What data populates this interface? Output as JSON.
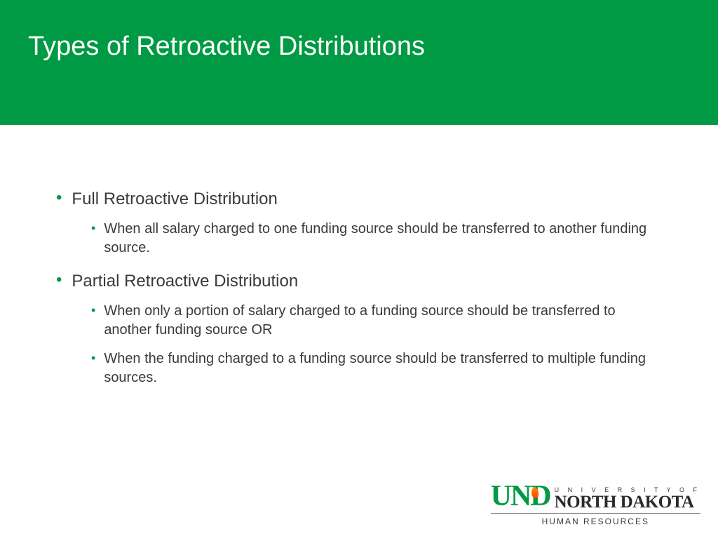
{
  "colors": {
    "brand_green": "#009a44",
    "text_dark": "#3a3a3a",
    "background": "#ffffff",
    "flame_top": "#ff8c00",
    "flame_bottom": "#ff4500"
  },
  "typography": {
    "title_fontsize": 38,
    "top_item_fontsize": 24,
    "sub_item_fontsize": 20
  },
  "header": {
    "title": "Types of Retroactive Distributions"
  },
  "content": {
    "items": [
      {
        "label": "Full Retroactive Distribution",
        "subitems": [
          "When all salary charged to one funding source should be transferred to another funding source."
        ]
      },
      {
        "label": "Partial Retroactive Distribution",
        "subitems": [
          "When only a portion of salary charged to a funding source should be transferred to another funding source   OR",
          "When the funding charged to a funding source should be transferred to multiple funding sources."
        ]
      }
    ]
  },
  "logo": {
    "abbrev": "UND",
    "line1": "U N I V E R S I T Y   O F",
    "line2": "NORTH DAKOTA",
    "dept": "HUMAN RESOURCES"
  }
}
